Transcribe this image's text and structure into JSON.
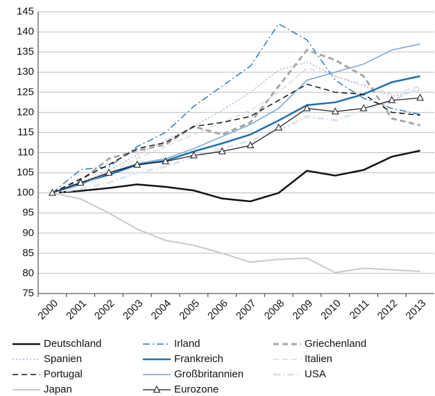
{
  "chart_data": {
    "type": "line",
    "categories": [
      "2000",
      "2001",
      "2002",
      "2003",
      "2004",
      "2005",
      "2006",
      "2007",
      "2008",
      "2009",
      "2010",
      "2011",
      "2012",
      "2013"
    ],
    "ylim": [
      75,
      145
    ],
    "yticks": [
      75,
      80,
      85,
      90,
      95,
      100,
      105,
      110,
      115,
      120,
      125,
      130,
      135,
      140,
      145
    ],
    "grid": true,
    "legend": "bottom",
    "series": [
      {
        "name": "Deutschland",
        "color": "#111111",
        "width": 2.5,
        "dash": "solid",
        "values": [
          100,
          100.5,
          101.2,
          102.1,
          101.5,
          100.6,
          98.6,
          97.9,
          100,
          105.5,
          104.3,
          105.7,
          109,
          110.5
        ]
      },
      {
        "name": "Irland",
        "color": "#2a7ab8",
        "width": 1.5,
        "dash": "dashdot",
        "values": [
          100,
          105.8,
          106.5,
          111.5,
          115,
          121.5,
          126.5,
          131.5,
          142,
          138,
          128,
          123.5,
          121,
          119.5
        ]
      },
      {
        "name": "Griechenland",
        "color": "#a6a6a6",
        "width": 3,
        "dash": "dashed",
        "values": [
          100,
          103,
          108.5,
          110.5,
          112,
          116.5,
          114.5,
          117.5,
          126.5,
          135.5,
          133,
          129,
          118.5,
          116.8
        ]
      },
      {
        "name": "Spanien",
        "color": "#9bb3d9",
        "width": 1.5,
        "dash": "dotted",
        "values": [
          100,
          102.5,
          105.5,
          109.5,
          113,
          116.5,
          120.5,
          125,
          130.5,
          132.5,
          129,
          126.5,
          124,
          125.5
        ]
      },
      {
        "name": "Frankreich",
        "color": "#1f6db0",
        "width": 2.5,
        "dash": "solid",
        "values": [
          100,
          102.5,
          104.5,
          107,
          108,
          110.3,
          112.3,
          114.5,
          118,
          121.8,
          122.5,
          124.5,
          127.5,
          129
        ]
      },
      {
        "name": "Italien",
        "color": "#d9d9d9",
        "width": 1.5,
        "dash": "dashed",
        "values": [
          100,
          102.5,
          105,
          108.5,
          111.5,
          114.5,
          117.5,
          120.5,
          125,
          131,
          129,
          127,
          124.5,
          126.5
        ]
      },
      {
        "name": "Portugal",
        "color": "#111111",
        "width": 1.5,
        "dash": "dashed",
        "values": [
          100,
          103.5,
          107,
          111,
          112.5,
          116.5,
          117.5,
          119,
          123,
          127,
          125,
          124.5,
          120,
          119.3
        ]
      },
      {
        "name": "Großbritannien",
        "color": "#7aa3cf",
        "width": 1.5,
        "dash": "solid",
        "values": [
          100,
          102,
          105,
          107.3,
          108.5,
          111,
          114,
          117,
          121,
          128,
          130,
          132,
          135.5,
          137
        ]
      },
      {
        "name": "USA",
        "color": "#dce6f4",
        "width": 3.5,
        "dash": "dashdot",
        "values": [
          100,
          101,
          102.5,
          105,
          106.5,
          109,
          111,
          113,
          115.5,
          119,
          118,
          120.5,
          123,
          126
        ]
      },
      {
        "name": "Japan",
        "color": "#c8c8c8",
        "width": 2,
        "dash": "solid",
        "values": [
          100,
          98.5,
          95,
          91,
          88.2,
          87,
          85,
          82.8,
          83.5,
          83.8,
          80.2,
          81.3,
          80.9,
          80.5
        ]
      },
      {
        "name": "Eurozone",
        "color": "#111111",
        "width": 1.2,
        "dash": "solid",
        "marker": "triangle",
        "values": [
          100,
          102.5,
          105,
          107,
          107.8,
          109.3,
          110.3,
          111.8,
          116.2,
          121,
          120.2,
          121,
          123,
          123.6
        ]
      }
    ]
  }
}
